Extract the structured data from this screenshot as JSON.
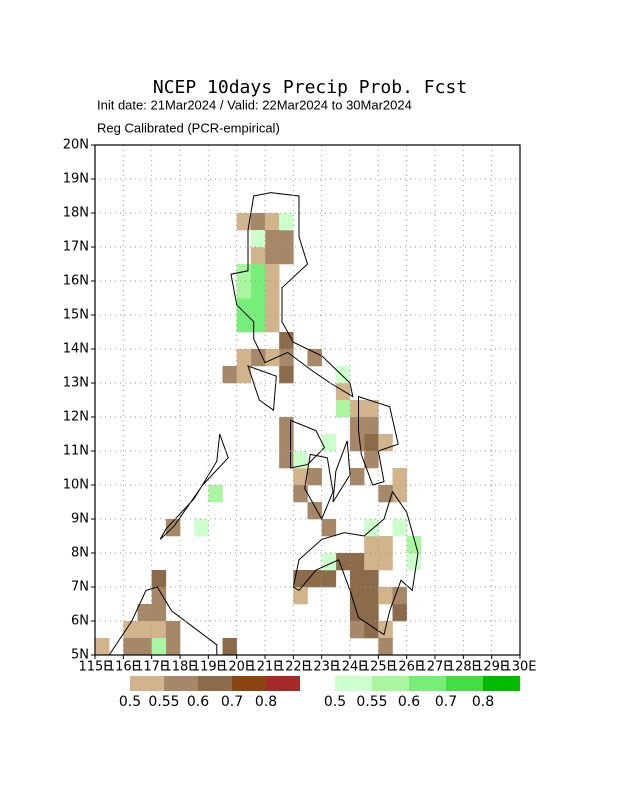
{
  "chart_data": {
    "type": "grid-map",
    "title": "NCEP 10days Precip Prob. Fcst",
    "subtitle": "Init date: 21Mar2024 / Valid: 22Mar2024 to 30Mar2024",
    "note": "Reg Calibrated (PCR-empirical)",
    "xlim": [
      115,
      130
    ],
    "ylim": [
      5,
      20
    ],
    "xticks": [
      {
        "value": 115,
        "label": "115E"
      },
      {
        "value": 116,
        "label": "116E"
      },
      {
        "value": 117,
        "label": "117E"
      },
      {
        "value": 118,
        "label": "118E"
      },
      {
        "value": 119,
        "label": "119E"
      },
      {
        "value": 120,
        "label": "120E"
      },
      {
        "value": 121,
        "label": "121E"
      },
      {
        "value": 122,
        "label": "122E"
      },
      {
        "value": 123,
        "label": "123E"
      },
      {
        "value": 124,
        "label": "124E"
      },
      {
        "value": 125,
        "label": "125E"
      },
      {
        "value": 126,
        "label": "126E"
      },
      {
        "value": 127,
        "label": "127E"
      },
      {
        "value": 128,
        "label": "128E"
      },
      {
        "value": 129,
        "label": "129E"
      },
      {
        "value": 130,
        "label": "130E"
      }
    ],
    "yticks": [
      {
        "value": 5,
        "label": "5N"
      },
      {
        "value": 6,
        "label": "6N"
      },
      {
        "value": 7,
        "label": "7N"
      },
      {
        "value": 8,
        "label": "8N"
      },
      {
        "value": 9,
        "label": "9N"
      },
      {
        "value": 10,
        "label": "10N"
      },
      {
        "value": 11,
        "label": "11N"
      },
      {
        "value": 12,
        "label": "12N"
      },
      {
        "value": 13,
        "label": "13N"
      },
      {
        "value": 14,
        "label": "14N"
      },
      {
        "value": 15,
        "label": "15N"
      },
      {
        "value": 16,
        "label": "16N"
      },
      {
        "value": 17,
        "label": "17N"
      },
      {
        "value": 18,
        "label": "18N"
      },
      {
        "value": 19,
        "label": "19N"
      },
      {
        "value": 20,
        "label": "20N"
      }
    ],
    "grid": true,
    "cell_size": 0.5,
    "series": [
      {
        "colors": [
          "#d2b48c",
          "#a68868",
          "#8b6b4a",
          "#8b4513",
          "#a52a2a"
        ],
        "levels": [
          0.5,
          0.55,
          0.6,
          0.7,
          0.8
        ],
        "cells": [
          [
            120.25,
            17.75,
            0.5
          ],
          [
            120.75,
            17.75,
            0.55
          ],
          [
            121.25,
            17.75,
            0.5
          ],
          [
            121.25,
            17.25,
            0.55
          ],
          [
            121.75,
            17.25,
            0.55
          ],
          [
            121.25,
            16.75,
            0.55
          ],
          [
            121.75,
            16.75,
            0.55
          ],
          [
            120.75,
            16.75,
            0.5
          ],
          [
            121.25,
            16.25,
            0.5
          ],
          [
            121.25,
            15.75,
            0.5
          ],
          [
            121.25,
            15.25,
            0.5
          ],
          [
            121.25,
            14.75,
            0.5
          ],
          [
            121.75,
            14.25,
            0.6
          ],
          [
            121.75,
            13.75,
            0.55
          ],
          [
            121.25,
            13.75,
            0.5
          ],
          [
            120.75,
            13.75,
            0.55
          ],
          [
            120.25,
            13.75,
            0.5
          ],
          [
            119.75,
            13.25,
            0.55
          ],
          [
            120.25,
            13.25,
            0.5
          ],
          [
            121.75,
            13.25,
            0.6
          ],
          [
            122.75,
            13.75,
            0.55
          ],
          [
            123.75,
            12.75,
            0.5
          ],
          [
            124.75,
            12.25,
            0.5
          ],
          [
            124.25,
            12.25,
            0.5
          ],
          [
            124.75,
            11.75,
            0.55
          ],
          [
            124.25,
            11.75,
            0.55
          ],
          [
            124.75,
            11.25,
            0.6
          ],
          [
            124.25,
            11.25,
            0.55
          ],
          [
            125.25,
            11.25,
            0.5
          ],
          [
            121.75,
            11.25,
            0.55
          ],
          [
            121.75,
            10.75,
            0.55
          ],
          [
            121.75,
            11.75,
            0.55
          ],
          [
            122.25,
            10.25,
            0.5
          ],
          [
            122.75,
            10.25,
            0.55
          ],
          [
            122.25,
            9.75,
            0.55
          ],
          [
            122.75,
            9.25,
            0.55
          ],
          [
            122.25,
            7.25,
            0.6
          ],
          [
            122.25,
            6.75,
            0.5
          ],
          [
            122.75,
            7.25,
            0.6
          ],
          [
            123.25,
            7.25,
            0.6
          ],
          [
            123.75,
            7.75,
            0.6
          ],
          [
            124.25,
            7.75,
            0.6
          ],
          [
            124.75,
            7.75,
            0.5
          ],
          [
            125.25,
            7.75,
            0.5
          ],
          [
            125.25,
            8.25,
            0.5
          ],
          [
            124.75,
            8.25,
            0.5
          ],
          [
            124.25,
            7.25,
            0.6
          ],
          [
            124.75,
            7.25,
            0.6
          ],
          [
            124.25,
            6.75,
            0.6
          ],
          [
            124.75,
            6.75,
            0.6
          ],
          [
            124.25,
            6.25,
            0.6
          ],
          [
            124.75,
            6.25,
            0.6
          ],
          [
            124.25,
            5.75,
            0.55
          ],
          [
            124.75,
            5.75,
            0.6
          ],
          [
            125.25,
            5.75,
            0.5
          ],
          [
            125.25,
            5.25,
            0.55
          ],
          [
            125.25,
            6.75,
            0.5
          ],
          [
            125.75,
            6.75,
            0.55
          ],
          [
            125.75,
            6.25,
            0.6
          ],
          [
            125.75,
            9.75,
            0.5
          ],
          [
            125.25,
            9.75,
            0.55
          ],
          [
            125.75,
            10.25,
            0.5
          ],
          [
            124.75,
            10.75,
            0.55
          ],
          [
            124.25,
            10.25,
            0.55
          ],
          [
            117.25,
            6.75,
            0.55
          ],
          [
            117.25,
            7.25,
            0.6
          ],
          [
            116.75,
            6.25,
            0.55
          ],
          [
            117.25,
            6.25,
            0.55
          ],
          [
            116.25,
            5.75,
            0.5
          ],
          [
            116.75,
            5.75,
            0.5
          ],
          [
            117.25,
            5.75,
            0.5
          ],
          [
            117.75,
            5.75,
            0.55
          ],
          [
            117.75,
            5.25,
            0.55
          ],
          [
            116.75,
            5.25,
            0.55
          ],
          [
            115.25,
            5.25,
            0.5
          ],
          [
            116.25,
            5.25,
            0.55
          ],
          [
            117.75,
            8.75,
            0.55
          ],
          [
            119.75,
            5.25,
            0.6
          ],
          [
            123.25,
            8.75,
            0.55
          ]
        ]
      },
      {
        "colors": [
          "#ccffcc",
          "#aaf5a0",
          "#77ee77",
          "#44dd44",
          "#00bb00"
        ],
        "levels": [
          0.5,
          0.55,
          0.6,
          0.7,
          0.8
        ],
        "cells": [
          [
            120.25,
            16.25,
            0.55
          ],
          [
            120.75,
            15.25,
            0.6
          ],
          [
            120.25,
            15.25,
            0.6
          ],
          [
            120.25,
            14.75,
            0.6
          ],
          [
            120.75,
            14.75,
            0.6
          ],
          [
            120.75,
            15.75,
            0.6
          ],
          [
            120.25,
            15.75,
            0.55
          ],
          [
            120.75,
            16.25,
            0.6
          ],
          [
            120.75,
            17.25,
            0.5
          ],
          [
            121.75,
            17.75,
            0.5
          ],
          [
            123.75,
            13.25,
            0.5
          ],
          [
            123.75,
            12.25,
            0.55
          ],
          [
            122.25,
            10.75,
            0.5
          ],
          [
            123.25,
            11.25,
            0.5
          ],
          [
            119.25,
            9.75,
            0.55
          ],
          [
            118.75,
            8.75,
            0.5
          ],
          [
            126.25,
            8.25,
            0.55
          ],
          [
            126.25,
            7.75,
            0.5
          ],
          [
            123.25,
            7.75,
            0.5
          ],
          [
            125.75,
            8.75,
            0.5
          ],
          [
            124.75,
            8.75,
            0.5
          ],
          [
            117.25,
            5.25,
            0.55
          ]
        ]
      }
    ]
  }
}
